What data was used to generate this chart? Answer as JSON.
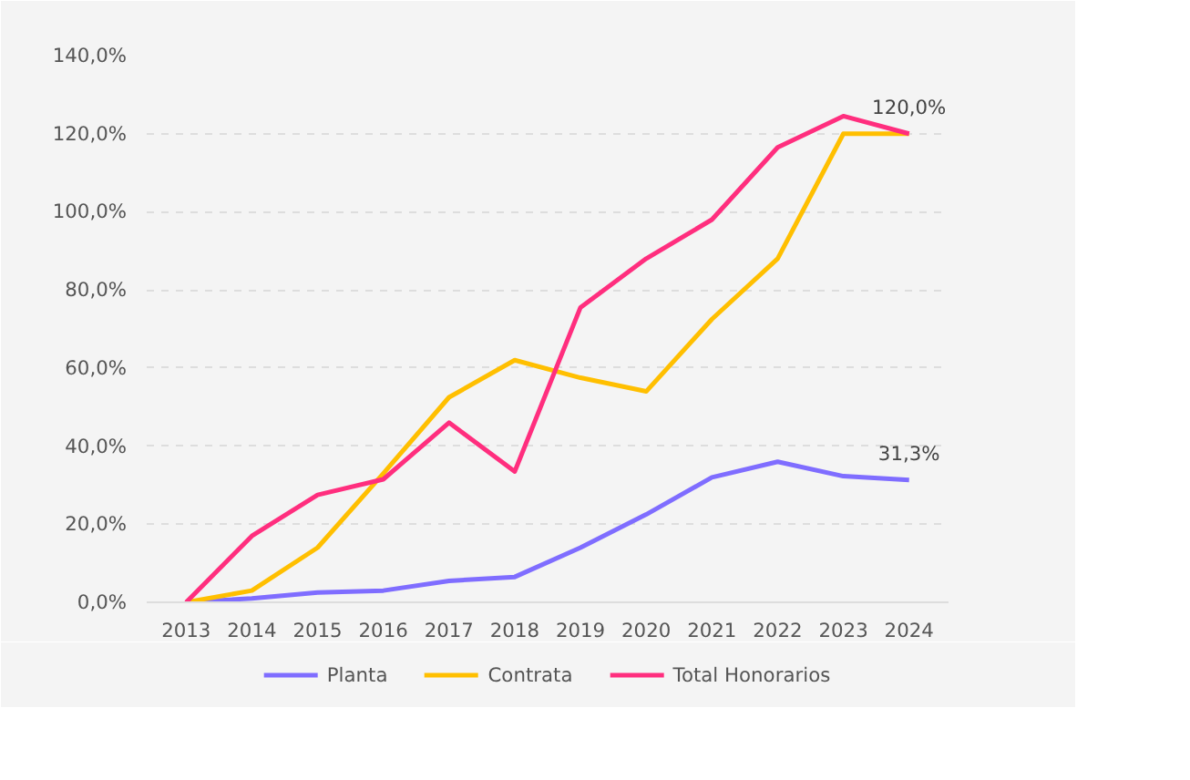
{
  "chart_data": {
    "type": "line",
    "categories": [
      "2013",
      "2014",
      "2015",
      "2016",
      "2017",
      "2018",
      "2019",
      "2020",
      "2021",
      "2022",
      "2023",
      "2024"
    ],
    "series": [
      {
        "name": "Planta",
        "color": "#7f6dff",
        "values": [
          0,
          1,
          2.5,
          3,
          5.5,
          6.5,
          14,
          22.5,
          32,
          36,
          32.3,
          31.3
        ]
      },
      {
        "name": "Contrata",
        "color": "#ffbf00",
        "values": [
          0,
          3,
          14,
          33,
          52.5,
          62,
          57.5,
          54,
          72.5,
          88,
          120,
          120
        ]
      },
      {
        "name": "Total Honorarios",
        "color": "#ff2e7e",
        "values": [
          0,
          17,
          27.5,
          31.5,
          46,
          33.5,
          75.5,
          88,
          98,
          116.5,
          124.5,
          120
        ]
      }
    ],
    "annotations": [
      {
        "text": "120,0%",
        "x": "2024",
        "y": 120
      },
      {
        "text": "31,3%",
        "x": "2024",
        "y": 31.3
      }
    ],
    "ylim": [
      0,
      140
    ],
    "yticks": [
      {
        "value": 0,
        "label": "0,0%"
      },
      {
        "value": 20,
        "label": "20,0%"
      },
      {
        "value": 40,
        "label": "40,0%"
      },
      {
        "value": 60,
        "label": "60,0%"
      },
      {
        "value": 80,
        "label": "80,0%"
      },
      {
        "value": 100,
        "label": "100,0%"
      },
      {
        "value": 120,
        "label": "120,0%"
      },
      {
        "value": 140,
        "label": "140,0%"
      }
    ],
    "grid": "y",
    "legend": "bottom",
    "marker": "none",
    "line_style": "solid"
  }
}
